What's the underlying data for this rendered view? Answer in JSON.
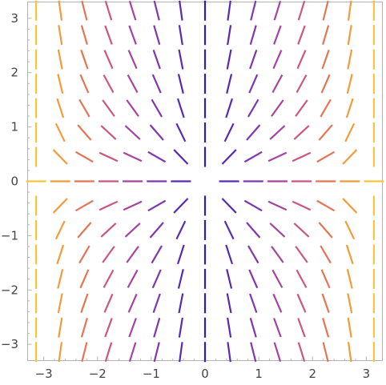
{
  "chart_data": {
    "type": "line-field",
    "title": "",
    "xlabel": "",
    "ylabel": "",
    "xlim": [
      -3.3,
      3.3
    ],
    "ylim": [
      -3.3,
      3.3
    ],
    "grid": false,
    "legend": "none",
    "x_ticks": [
      {
        "value": -3,
        "label": "−3"
      },
      {
        "value": -2,
        "label": "−2"
      },
      {
        "value": -1,
        "label": "−1"
      },
      {
        "value": 0,
        "label": "0"
      },
      {
        "value": 1,
        "label": "1"
      },
      {
        "value": 2,
        "label": "2"
      },
      {
        "value": 3,
        "label": "3"
      }
    ],
    "y_ticks": [
      {
        "value": -3,
        "label": "−3"
      },
      {
        "value": -2,
        "label": "−2"
      },
      {
        "value": -1,
        "label": "−1"
      },
      {
        "value": 0,
        "label": "0"
      },
      {
        "value": 1,
        "label": "1"
      },
      {
        "value": 2,
        "label": "2"
      },
      {
        "value": 3,
        "label": "3"
      }
    ],
    "field": {
      "grid_n": 15,
      "domain": [
        -3.14159,
        3.14159
      ],
      "direction_rule": "angle = atan2(y, sin(x)); undirected segments, centered at grid points",
      "color_by": "|x| (distance from vertical axis)",
      "colormap": [
        "#2a1fb4",
        "#6a2fb0",
        "#9e3fa8",
        "#d25a78",
        "#ef8a3c",
        "#f6c43a"
      ]
    }
  }
}
